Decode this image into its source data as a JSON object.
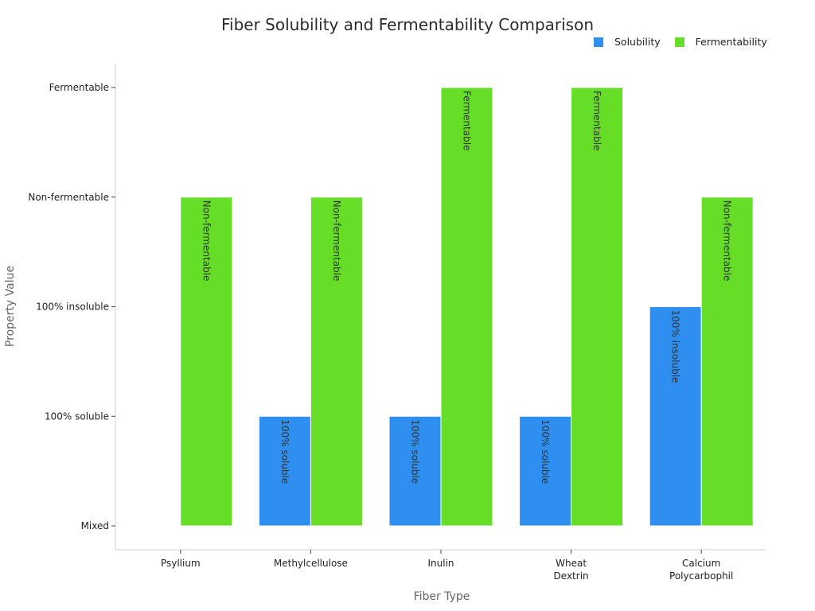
{
  "chart_data": {
    "type": "bar",
    "title": "Fiber Solubility and Fermentability Comparison",
    "xlabel": "Fiber Type",
    "ylabel": "Property Value",
    "categories": [
      [
        "Psyllium"
      ],
      [
        "Methylcellulose"
      ],
      [
        "Inulin"
      ],
      [
        "Wheat",
        "Dextrin"
      ],
      [
        "Calcium",
        "Polycarbophil"
      ]
    ],
    "y_levels": [
      "Mixed",
      "100% soluble",
      "100% insoluble",
      "Non-fermentable",
      "Fermentable"
    ],
    "ylim": [
      0,
      4
    ],
    "grid": false,
    "legend_position": "top-right",
    "series": [
      {
        "name": "Solubility",
        "color": "#2f8ff0",
        "values": [
          0,
          1,
          1,
          1,
          2
        ],
        "labels": [
          "",
          "100% soluble",
          "100% soluble",
          "100% soluble",
          "100% insoluble"
        ]
      },
      {
        "name": "Fermentability",
        "color": "#66dd27",
        "values": [
          3,
          3,
          4,
          4,
          3
        ],
        "labels": [
          "Non-fermentable",
          "Non-fermentable",
          "Fermentable",
          "Fermentable",
          "Non-fermentable"
        ]
      }
    ]
  }
}
